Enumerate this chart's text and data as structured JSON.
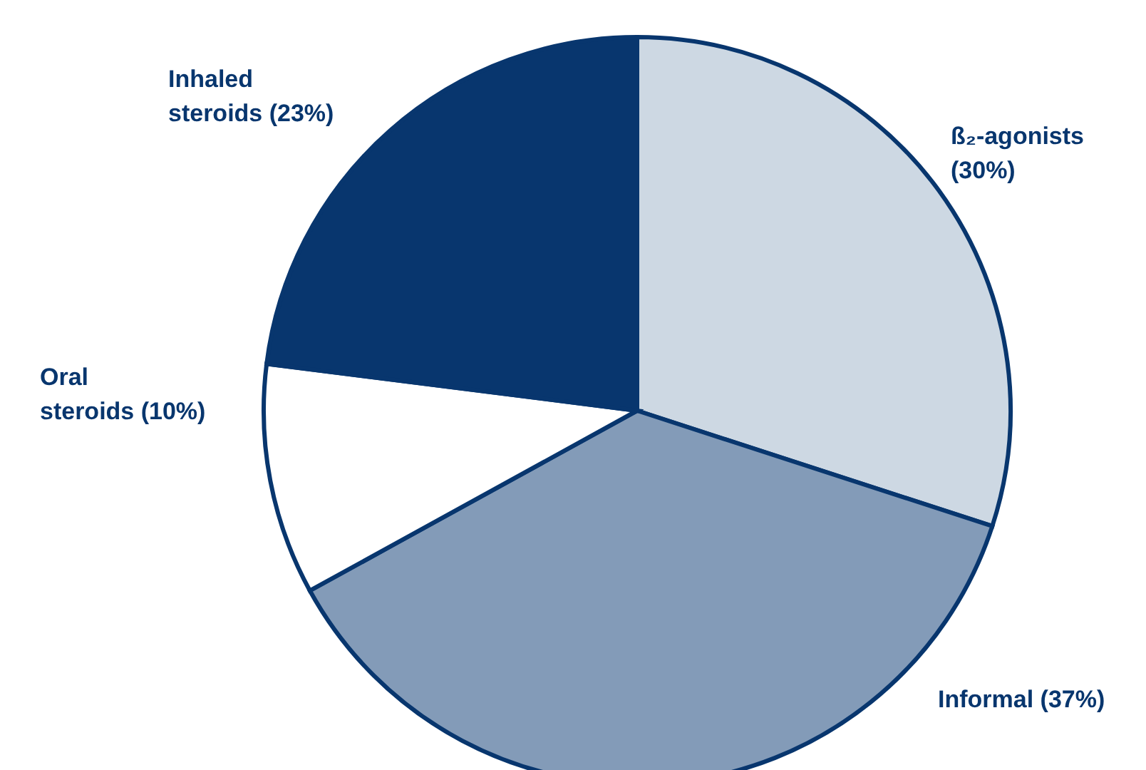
{
  "chart_data": {
    "type": "pie",
    "categories": [
      "ß₂-agonists",
      "Informal",
      "Oral steroids",
      "Inhaled steroids"
    ],
    "values": [
      30,
      37,
      10,
      23
    ],
    "value_labels": [
      "(30%)",
      "(37%)",
      "(10%)",
      "(23%)"
    ],
    "colors": [
      "#cdd8e3",
      "#839bb8",
      "#ffffff",
      "#08366e"
    ]
  }
}
